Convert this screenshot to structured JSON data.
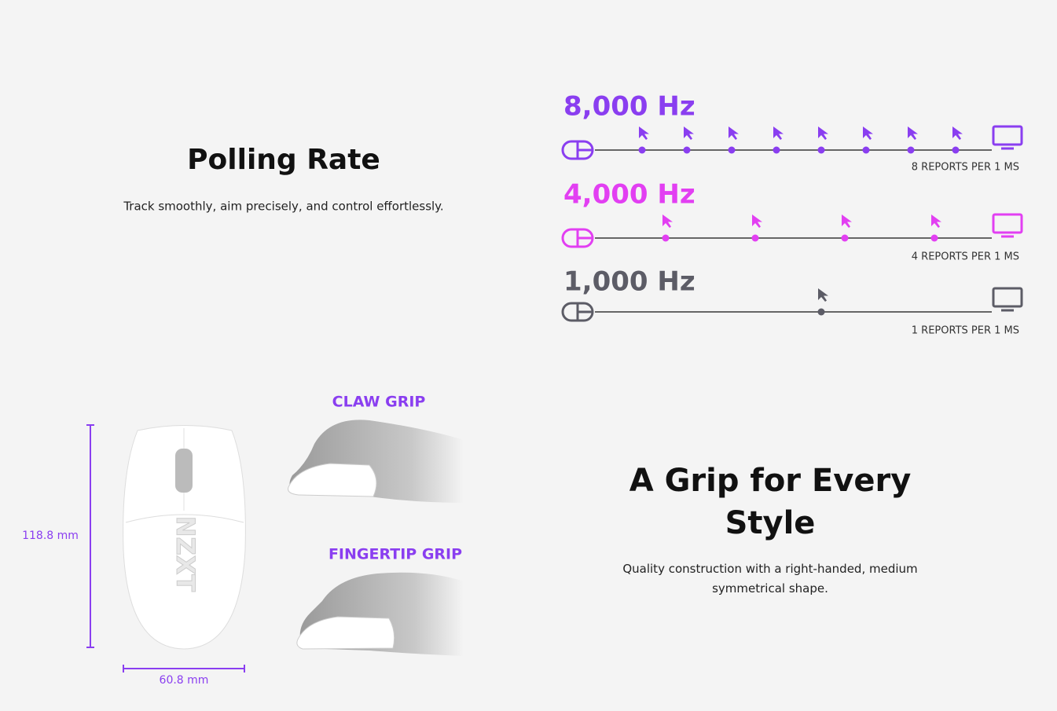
{
  "polling": {
    "title": "Polling Rate",
    "description": "Track smoothly, aim precisely, and control effortlessly.",
    "rates": [
      {
        "label": "8,000 Hz",
        "caption": "8 REPORTS PER 1 MS",
        "color": "#8a3ef0"
      },
      {
        "label": "4,000 Hz",
        "caption": "4 REPORTS PER 1 MS",
        "color": "#e23ff2"
      },
      {
        "label": "1,000 Hz",
        "caption": "1 REPORTS PER 1 MS",
        "color": "#5c5c66"
      }
    ]
  },
  "grip": {
    "title": "A Grip for Every Style",
    "description": "Quality construction with a right-handed, medium symmetrical shape.",
    "styles": [
      "CLAW GRIP",
      "FINGERTIP GRIP"
    ],
    "height": "118.8 mm",
    "width": "60.8 mm"
  }
}
